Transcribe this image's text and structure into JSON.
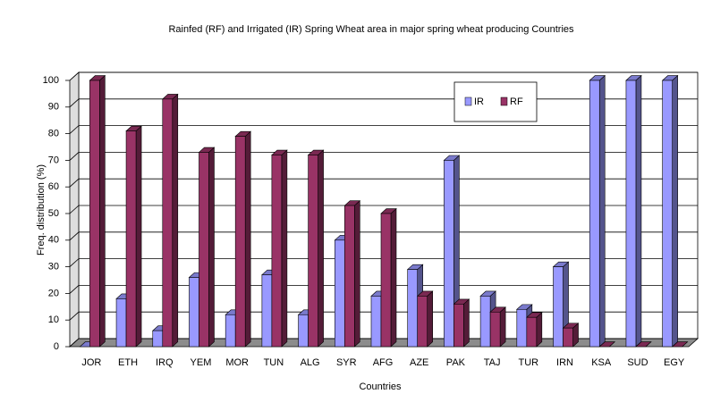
{
  "chart_data": {
    "type": "bar3d",
    "title": "Rainfed (RF) and Irrigated (IR) Spring Wheat area in major spring wheat producing Countries",
    "x_label": "Countries",
    "y_label": "Freq. distribution (%)",
    "categories": [
      "JOR",
      "ETH",
      "IRQ",
      "YEM",
      "MOR",
      "TUN",
      "ALG",
      "SYR",
      "AFG",
      "AZE",
      "PAK",
      "TAJ",
      "TUR",
      "IRN",
      "KSA",
      "SUD",
      "EGY"
    ],
    "series": [
      {
        "name": "IR",
        "color": "#9999ff",
        "values": [
          0,
          18,
          6,
          26,
          12,
          27,
          12,
          40,
          19,
          29,
          70,
          19,
          14,
          30,
          100,
          100,
          100
        ]
      },
      {
        "name": "RF",
        "color": "#993366",
        "values": [
          100,
          81,
          93,
          73,
          79,
          72,
          72,
          53,
          50,
          19,
          16,
          13,
          11,
          7,
          0,
          0,
          0
        ]
      }
    ],
    "ylim": [
      0,
      100
    ],
    "yticks": [
      0,
      10,
      20,
      30,
      40,
      50,
      60,
      70,
      80,
      90,
      100
    ],
    "grid": true
  }
}
